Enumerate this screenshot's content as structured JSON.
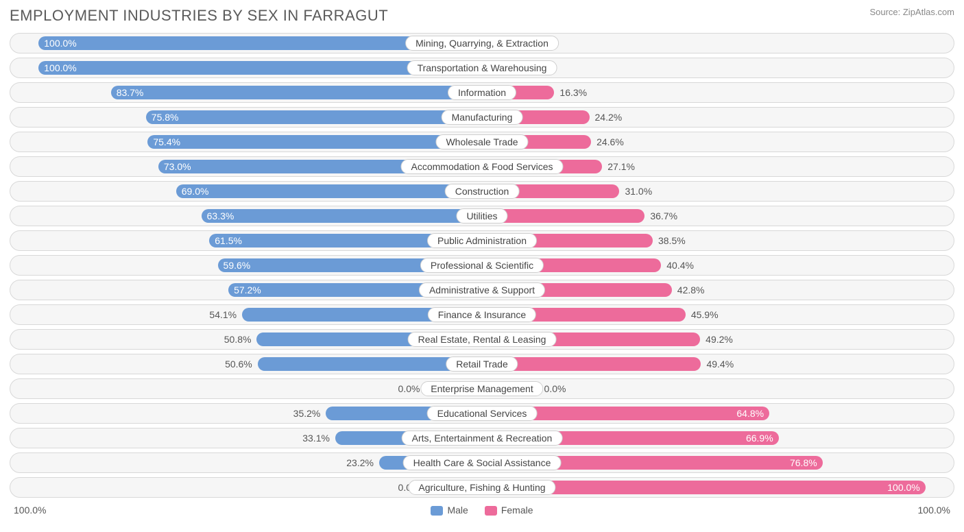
{
  "title": "EMPLOYMENT INDUSTRIES BY SEX IN FARRAGUT",
  "source": "Source: ZipAtlas.com",
  "colors": {
    "male": "#6b9bd6",
    "female": "#ed6b9b",
    "row_bg": "#f6f6f6",
    "row_border": "#d8d8d8",
    "text": "#555555",
    "bar_text_inside": "#ffffff",
    "pill_bg": "#ffffff",
    "pill_border": "#cfcfcf"
  },
  "chart": {
    "type": "diverging-bar",
    "half_width_pct": 50,
    "half_display_max_pct": 47,
    "enterprise_stub_pct": 6,
    "inside_threshold": 55,
    "axis_left": "100.0%",
    "axis_right": "100.0%",
    "legend": {
      "male": "Male",
      "female": "Female"
    },
    "rows": [
      {
        "label": "Mining, Quarrying, & Extraction",
        "male": 100.0,
        "female": 0.0
      },
      {
        "label": "Transportation & Warehousing",
        "male": 100.0,
        "female": 0.0
      },
      {
        "label": "Information",
        "male": 83.7,
        "female": 16.3
      },
      {
        "label": "Manufacturing",
        "male": 75.8,
        "female": 24.2
      },
      {
        "label": "Wholesale Trade",
        "male": 75.4,
        "female": 24.6
      },
      {
        "label": "Accommodation & Food Services",
        "male": 73.0,
        "female": 27.1
      },
      {
        "label": "Construction",
        "male": 69.0,
        "female": 31.0
      },
      {
        "label": "Utilities",
        "male": 63.3,
        "female": 36.7
      },
      {
        "label": "Public Administration",
        "male": 61.5,
        "female": 38.5
      },
      {
        "label": "Professional & Scientific",
        "male": 59.6,
        "female": 40.4
      },
      {
        "label": "Administrative & Support",
        "male": 57.2,
        "female": 42.8
      },
      {
        "label": "Finance & Insurance",
        "male": 54.1,
        "female": 45.9
      },
      {
        "label": "Real Estate, Rental & Leasing",
        "male": 50.8,
        "female": 49.2
      },
      {
        "label": "Retail Trade",
        "male": 50.6,
        "female": 49.4
      },
      {
        "label": "Enterprise Management",
        "male": 0.0,
        "female": 0.0,
        "stub": true
      },
      {
        "label": "Educational Services",
        "male": 35.2,
        "female": 64.8
      },
      {
        "label": "Arts, Entertainment & Recreation",
        "male": 33.1,
        "female": 66.9
      },
      {
        "label": "Health Care & Social Assistance",
        "male": 23.2,
        "female": 76.8
      },
      {
        "label": "Agriculture, Fishing & Hunting",
        "male": 0.0,
        "female": 100.0,
        "male_stub": true
      }
    ]
  }
}
